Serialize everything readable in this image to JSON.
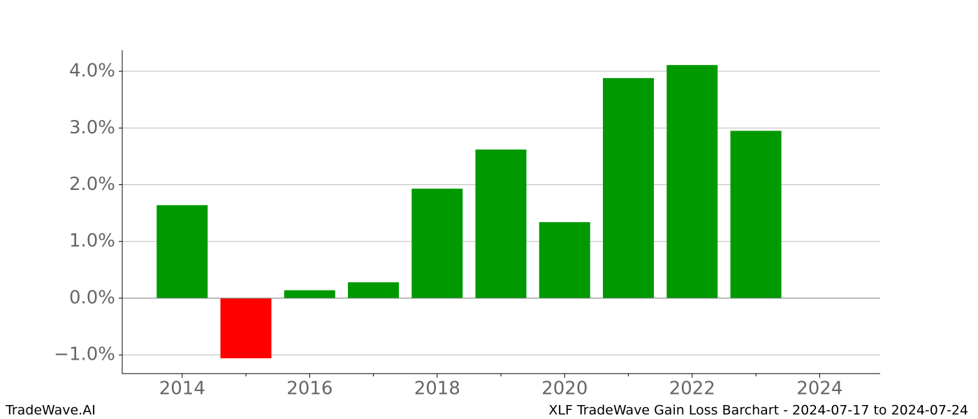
{
  "chart_data": {
    "type": "bar",
    "title": "XLF TradeWave Gain Loss Barchart - 2024-07-17 to 2024-07-24",
    "watermark": "TradeWave.AI",
    "x": [
      2014,
      2015,
      2016,
      2017,
      2018,
      2019,
      2020,
      2021,
      2022,
      2023
    ],
    "values": [
      1.64,
      -1.06,
      0.14,
      0.28,
      1.93,
      2.62,
      1.34,
      3.88,
      4.11,
      2.95
    ],
    "positive_color": "#009900",
    "negative_color": "#ff0000",
    "xlim": [
      2013.06,
      2024.95
    ],
    "xticks": [
      2014,
      2016,
      2018,
      2020,
      2022,
      2024
    ],
    "xminorticks": [
      2015,
      2017,
      2019,
      2021,
      2023
    ],
    "ylim": [
      -1.33,
      4.37
    ],
    "yticks": [
      {
        "value": -1,
        "label": "−1.0%"
      },
      {
        "value": 0,
        "label": "0.0%"
      },
      {
        "value": 1,
        "label": "1.0%"
      },
      {
        "value": 2,
        "label": "2.0%"
      },
      {
        "value": 3,
        "label": "3.0%"
      },
      {
        "value": 4,
        "label": "4.0%"
      }
    ],
    "grid": true
  }
}
